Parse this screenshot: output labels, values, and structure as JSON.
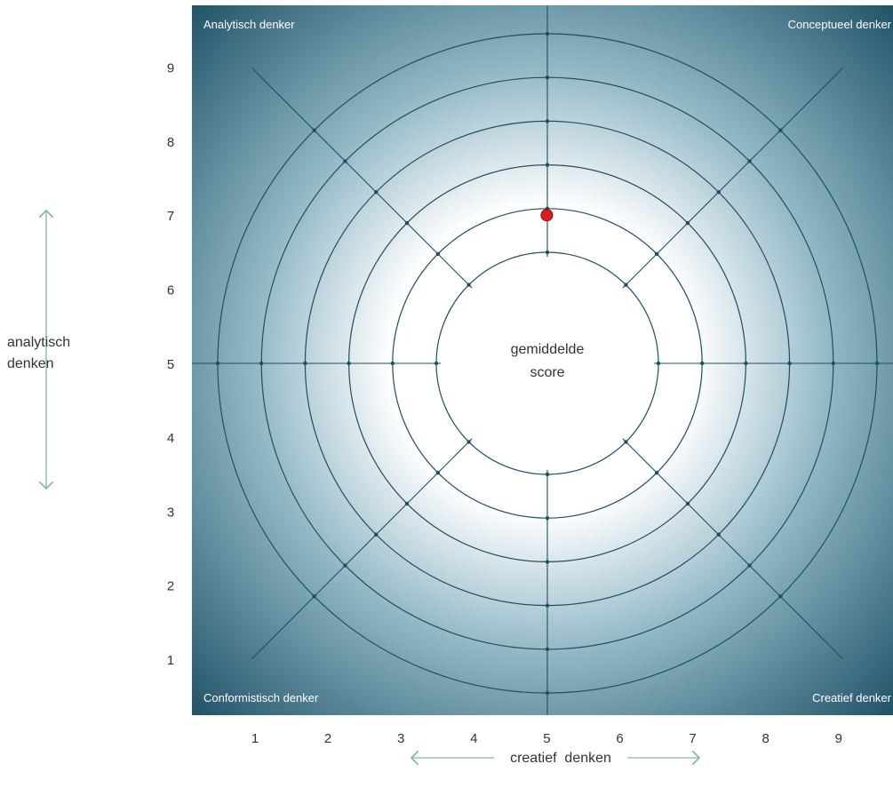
{
  "colors": {
    "background_center": "#ffffff",
    "background_edge": "#1b4e63",
    "grid_line": "#1e4f63",
    "marker": "#e3191e",
    "arrow": "#7fb8ad"
  },
  "corners": {
    "top_left": "Analytisch denker",
    "top_right": "Conceptueel denker",
    "bottom_left": "Conformistisch denker",
    "bottom_right": "Creatief denker"
  },
  "center_label": [
    "gemiddelde",
    "score"
  ],
  "axes": {
    "y_label": [
      "analytisch",
      "denken"
    ],
    "x_label": "creatief  denken"
  },
  "chart_data": {
    "type": "scatter",
    "title": "",
    "xlabel": "creatief  denken",
    "ylabel": "analytisch denken",
    "xlim": [
      0.5,
      9.5
    ],
    "ylim": [
      0.5,
      9.5
    ],
    "xticks": [
      "1",
      "2",
      "3",
      "4",
      "5",
      "6",
      "7",
      "8",
      "9"
    ],
    "yticks": [
      "1",
      "2",
      "3",
      "4",
      "5",
      "6",
      "7",
      "8",
      "9"
    ],
    "grid": "concentric-rings",
    "rings": 6,
    "points": [
      {
        "x": 5,
        "y": 7.0
      }
    ]
  }
}
